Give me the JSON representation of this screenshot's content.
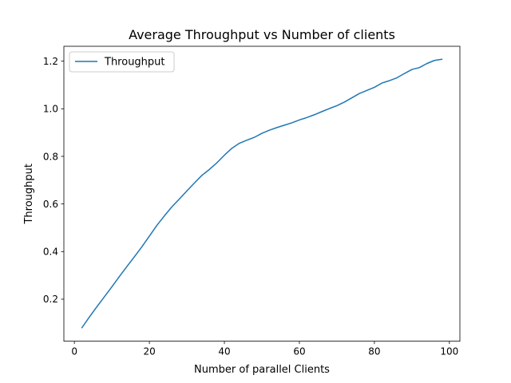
{
  "chart_data": {
    "type": "line",
    "title": "Average Throughput vs Number of clients",
    "xlabel": "Number of parallel Clients",
    "ylabel": "Throughput",
    "xlim": [
      -2.8,
      102.8
    ],
    "ylim": [
      0.0235,
      1.2625
    ],
    "xticks": [
      0,
      20,
      40,
      60,
      80,
      100
    ],
    "yticks": [
      0.2,
      0.4,
      0.6,
      0.8,
      1.0,
      1.2
    ],
    "xtick_labels": [
      "0",
      "20",
      "40",
      "60",
      "80",
      "100"
    ],
    "ytick_labels": [
      "0.2",
      "0.4",
      "0.6",
      "0.8",
      "1.0",
      "1.2"
    ],
    "grid": false,
    "legend_position": "top-left",
    "series": [
      {
        "name": "Throughput",
        "color": "#1f77b4",
        "x": [
          2,
          4,
          6,
          8,
          10,
          12,
          14,
          16,
          18,
          20,
          22,
          24,
          26,
          28,
          30,
          32,
          34,
          36,
          38,
          40,
          42,
          44,
          46,
          48,
          50,
          52,
          54,
          56,
          58,
          60,
          62,
          64,
          66,
          68,
          70,
          72,
          74,
          76,
          78,
          80,
          82,
          84,
          86,
          88,
          90,
          92,
          94,
          96,
          98
        ],
        "y": [
          0.08,
          0.125,
          0.168,
          0.21,
          0.252,
          0.295,
          0.337,
          0.378,
          0.42,
          0.465,
          0.51,
          0.55,
          0.588,
          0.621,
          0.655,
          0.688,
          0.72,
          0.745,
          0.773,
          0.805,
          0.834,
          0.855,
          0.868,
          0.88,
          0.897,
          0.91,
          0.921,
          0.931,
          0.941,
          0.953,
          0.963,
          0.975,
          0.988,
          1.001,
          1.013,
          1.028,
          1.046,
          1.064,
          1.077,
          1.09,
          1.108,
          1.118,
          1.13,
          1.148,
          1.165,
          1.173,
          1.19,
          1.203,
          1.208
        ]
      }
    ]
  }
}
